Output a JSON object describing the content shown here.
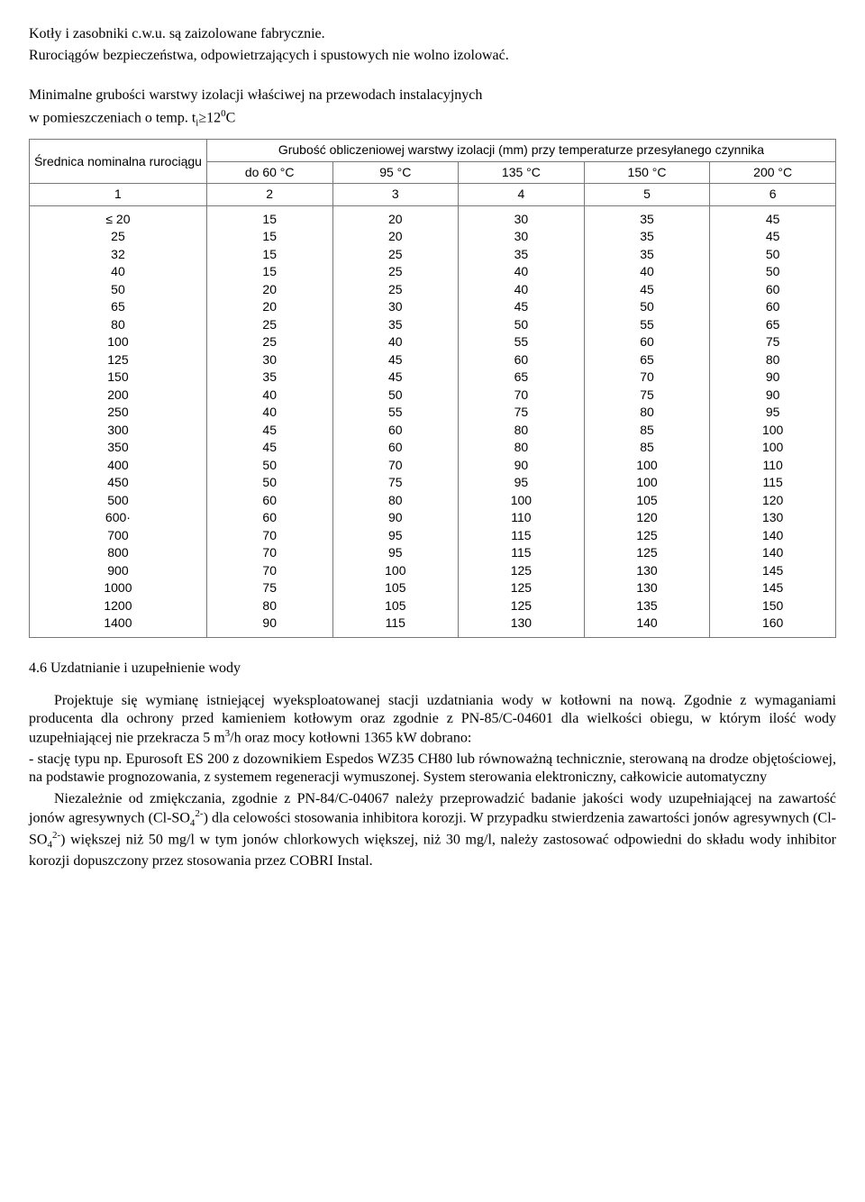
{
  "intro": {
    "p1": "Kotły i zasobniki c.w.u. są zaizolowane fabrycznie.",
    "p2": "Rurociągów bezpieczeństwa, odpowietrzających i spustowych nie wolno izolować.",
    "p3a": "Minimalne grubości warstwy izolacji właściwej na przewodach instalacyjnych",
    "p3b": "w pomieszczeniach o temp. t",
    "p3_sub": "i",
    "p3_ge": "≥12",
    "p3_sup": "0",
    "p3_c": "C"
  },
  "table": {
    "header_left": "Średnica nominalna rurociągu",
    "header_right": "Grubość obliczeniowej warstwy izolacji (mm) przy temperaturze przesyłanego czynnika",
    "temp_cols": [
      "do 60 °C",
      "95 °C",
      "135 °C",
      "150 °C",
      "200 °C"
    ],
    "num_row": [
      "1",
      "2",
      "3",
      "4",
      "5",
      "6"
    ],
    "rows": [
      [
        "≤ 20",
        "15",
        "20",
        "30",
        "35",
        "45"
      ],
      [
        "25",
        "15",
        "20",
        "30",
        "35",
        "45"
      ],
      [
        "32",
        "15",
        "25",
        "35",
        "35",
        "50"
      ],
      [
        "40",
        "15",
        "25",
        "40",
        "40",
        "50"
      ],
      [
        "50",
        "20",
        "25",
        "40",
        "45",
        "60"
      ],
      [
        "65",
        "20",
        "30",
        "45",
        "50",
        "60"
      ],
      [
        "80",
        "25",
        "35",
        "50",
        "55",
        "65"
      ],
      [
        "100",
        "25",
        "40",
        "55",
        "60",
        "75"
      ],
      [
        "125",
        "30",
        "45",
        "60",
        "65",
        "80"
      ],
      [
        "150",
        "35",
        "45",
        "65",
        "70",
        "90"
      ],
      [
        "200",
        "40",
        "50",
        "70",
        "75",
        "90"
      ],
      [
        "250",
        "40",
        "55",
        "75",
        "80",
        "95"
      ],
      [
        "300",
        "45",
        "60",
        "80",
        "85",
        "100"
      ],
      [
        "350",
        "45",
        "60",
        "80",
        "85",
        "100"
      ],
      [
        "400",
        "50",
        "70",
        "90",
        "100",
        "110"
      ],
      [
        "450",
        "50",
        "75",
        "95",
        "100",
        "115"
      ],
      [
        "500",
        "60",
        "80",
        "100",
        "105",
        "120"
      ],
      [
        "600·",
        "60",
        "90",
        "110",
        "120",
        "130"
      ],
      [
        "700",
        "70",
        "95",
        "115",
        "125",
        "140"
      ],
      [
        "800",
        "70",
        "95",
        "115",
        "125",
        "140"
      ],
      [
        "900",
        "70",
        "100",
        "125",
        "130",
        "145"
      ],
      [
        "1000",
        "75",
        "105",
        "125",
        "130",
        "145"
      ],
      [
        "1200",
        "80",
        "105",
        "125",
        "135",
        "150"
      ],
      [
        "1400",
        "90",
        "115",
        "130",
        "140",
        "160"
      ]
    ]
  },
  "section46": {
    "title": "4.6 Uzdatnianie i uzupełnienie wody",
    "para1a": "Projektuje się wymianę istniejącej wyeksploatowanej stacji uzdatniania wody w kotłowni na nową. Zgodnie z wymaganiami producenta dla ochrony przed kamieniem kotłowym oraz zgodnie z PN-85/C-04601 dla wielkości obiegu, w którym ilość wody uzupełniającej nie przekracza 5 m",
    "para1_sup": "3",
    "para1b": "/h oraz mocy kotłowni 1365 kW dobrano:",
    "bullet": "- stację typu np. Epurosoft ES 200 z dozownikiem Espedos WZ35 CH80 lub równoważną technicznie, sterowaną na drodze objętościowej, na podstawie prognozowania, z systemem regeneracji wymuszonej. System sterowania elektroniczny, całkowicie automatyczny",
    "para2a": "Niezależnie od zmiękczania, zgodnie z PN-84/C-04067  należy przeprowadzić badanie jakości wody uzupełniającej na zawartość jonów agresywnych (Cl-SO",
    "para2_sub1": "4",
    "para2_sup1": "2-",
    "para2b": ") dla celowości stosowania inhibitora korozji. W przypadku stwierdzenia zawartości jonów agresywnych (Cl-SO",
    "para2_sub2": "4",
    "para2_sup2": "2-",
    "para2c": ") większej niż 50 mg/l w tym jonów chlorkowych większej, niż 30 mg/l, należy zastosować odpowiedni do składu wody inhibitor korozji dopuszczony przez stosowania przez COBRI Instal."
  }
}
